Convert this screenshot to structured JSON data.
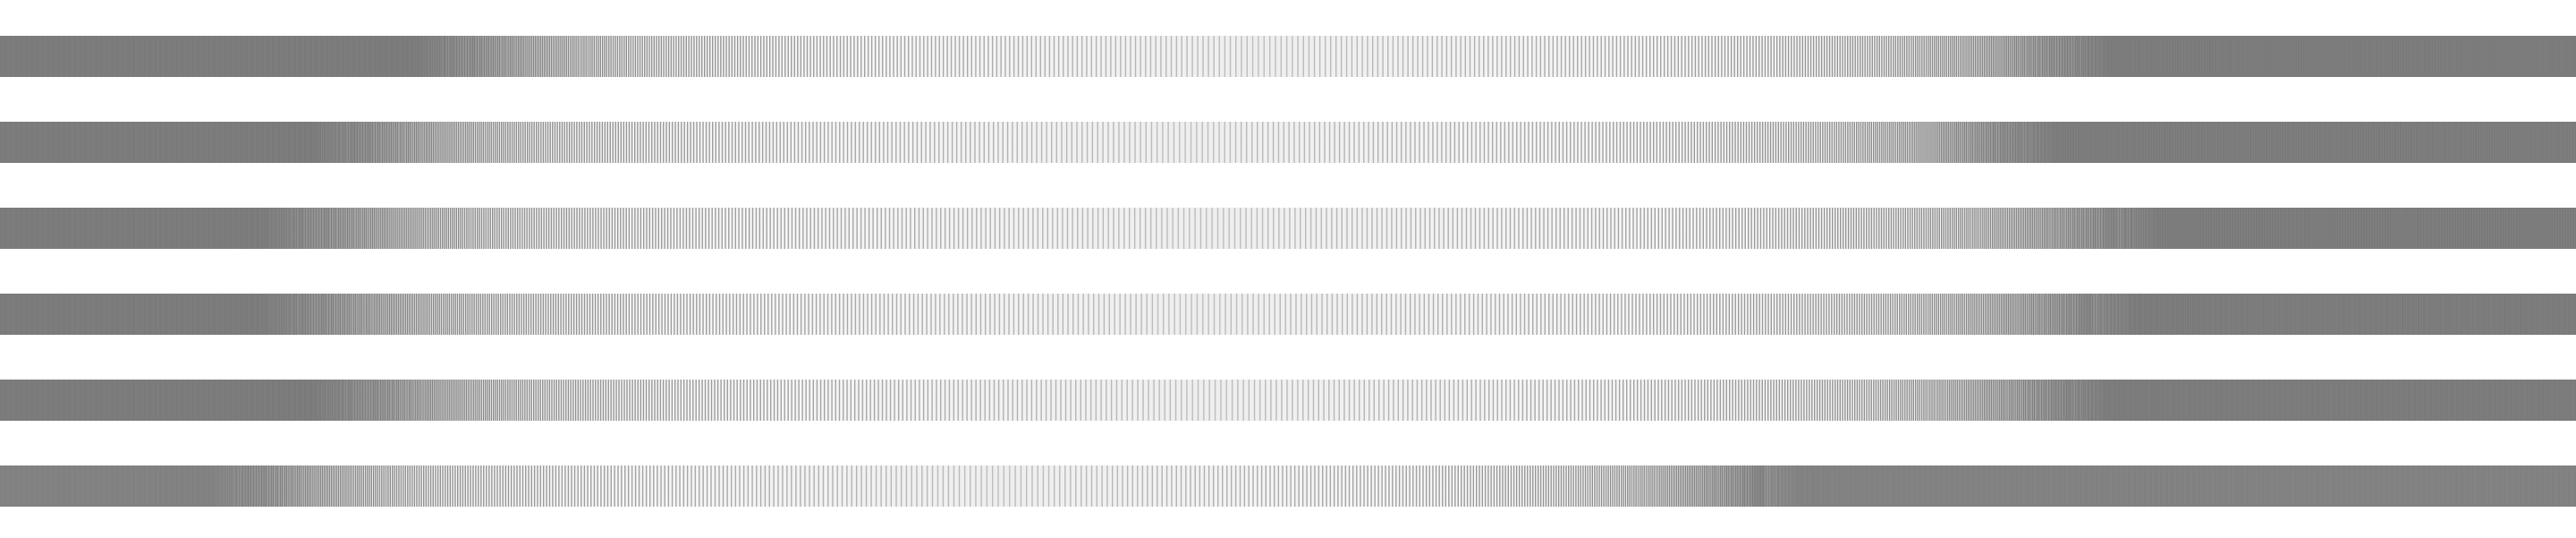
{
  "pattern": {
    "background_color": "#ffffff",
    "line_color": "#777777",
    "light_band_color": "#cfcfcf",
    "stripes": [
      {
        "id": "stripe-1",
        "dense_left": 0.16,
        "dense_right": 0.82,
        "dense_end_color": "#7a7a7a"
      },
      {
        "id": "stripe-2",
        "dense_left": 0.12,
        "dense_right": 0.8,
        "dense_end_color": "#7a7a7a"
      },
      {
        "id": "stripe-3",
        "dense_left": 0.1,
        "dense_right": 0.84,
        "dense_end_color": "#7a7a7a"
      },
      {
        "id": "stripe-4",
        "dense_left": 0.1,
        "dense_right": 0.83,
        "dense_end_color": "#7a7a7a"
      },
      {
        "id": "stripe-5",
        "dense_left": 0.12,
        "dense_right": 0.82,
        "dense_end_color": "#7a7a7a"
      },
      {
        "id": "stripe-6",
        "dense_left": 0.08,
        "dense_right": 0.7,
        "dense_end_color": "#808080"
      }
    ]
  }
}
